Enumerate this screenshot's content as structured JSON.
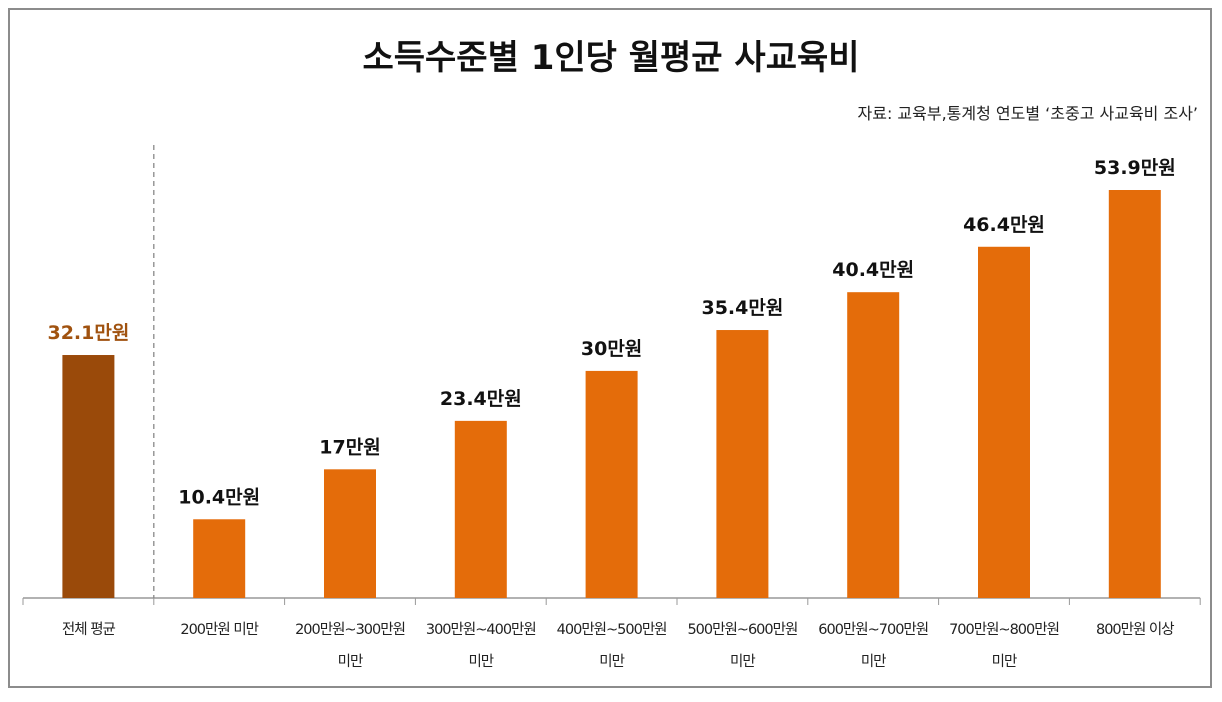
{
  "chart_data": {
    "type": "bar",
    "title": "소득수준별 1인당 월평균 사교육비",
    "source": "자료: 교육부,통계청 연도별 ‘초중고 사교육비 조사’",
    "unit": "만원",
    "categories": [
      [
        "전체 평균"
      ],
      [
        "200만원 미만"
      ],
      [
        "200만원~300만원",
        "미만"
      ],
      [
        "300만원~400만원",
        "미만"
      ],
      [
        "400만원~500만원",
        "미만"
      ],
      [
        "500만원~600만원",
        "미만"
      ],
      [
        "600만원~700만원",
        "미만"
      ],
      [
        "700만원~800만원",
        "미만"
      ],
      [
        "800만원 이상"
      ]
    ],
    "values": [
      32.1,
      10.4,
      17,
      23.4,
      30,
      35.4,
      40.4,
      46.4,
      53.9
    ],
    "labels": [
      "32.1만원",
      "10.4만원",
      "17만원",
      "23.4만원",
      "30만원",
      "35.4만원",
      "40.4만원",
      "46.4만원",
      "53.9만원"
    ],
    "ylim": [
      0,
      53.9
    ],
    "grid": false,
    "colors": {
      "average": "#9a4a0a",
      "bars": "#e46c0a",
      "average_label": "#a0520f",
      "label": "#111111"
    }
  }
}
